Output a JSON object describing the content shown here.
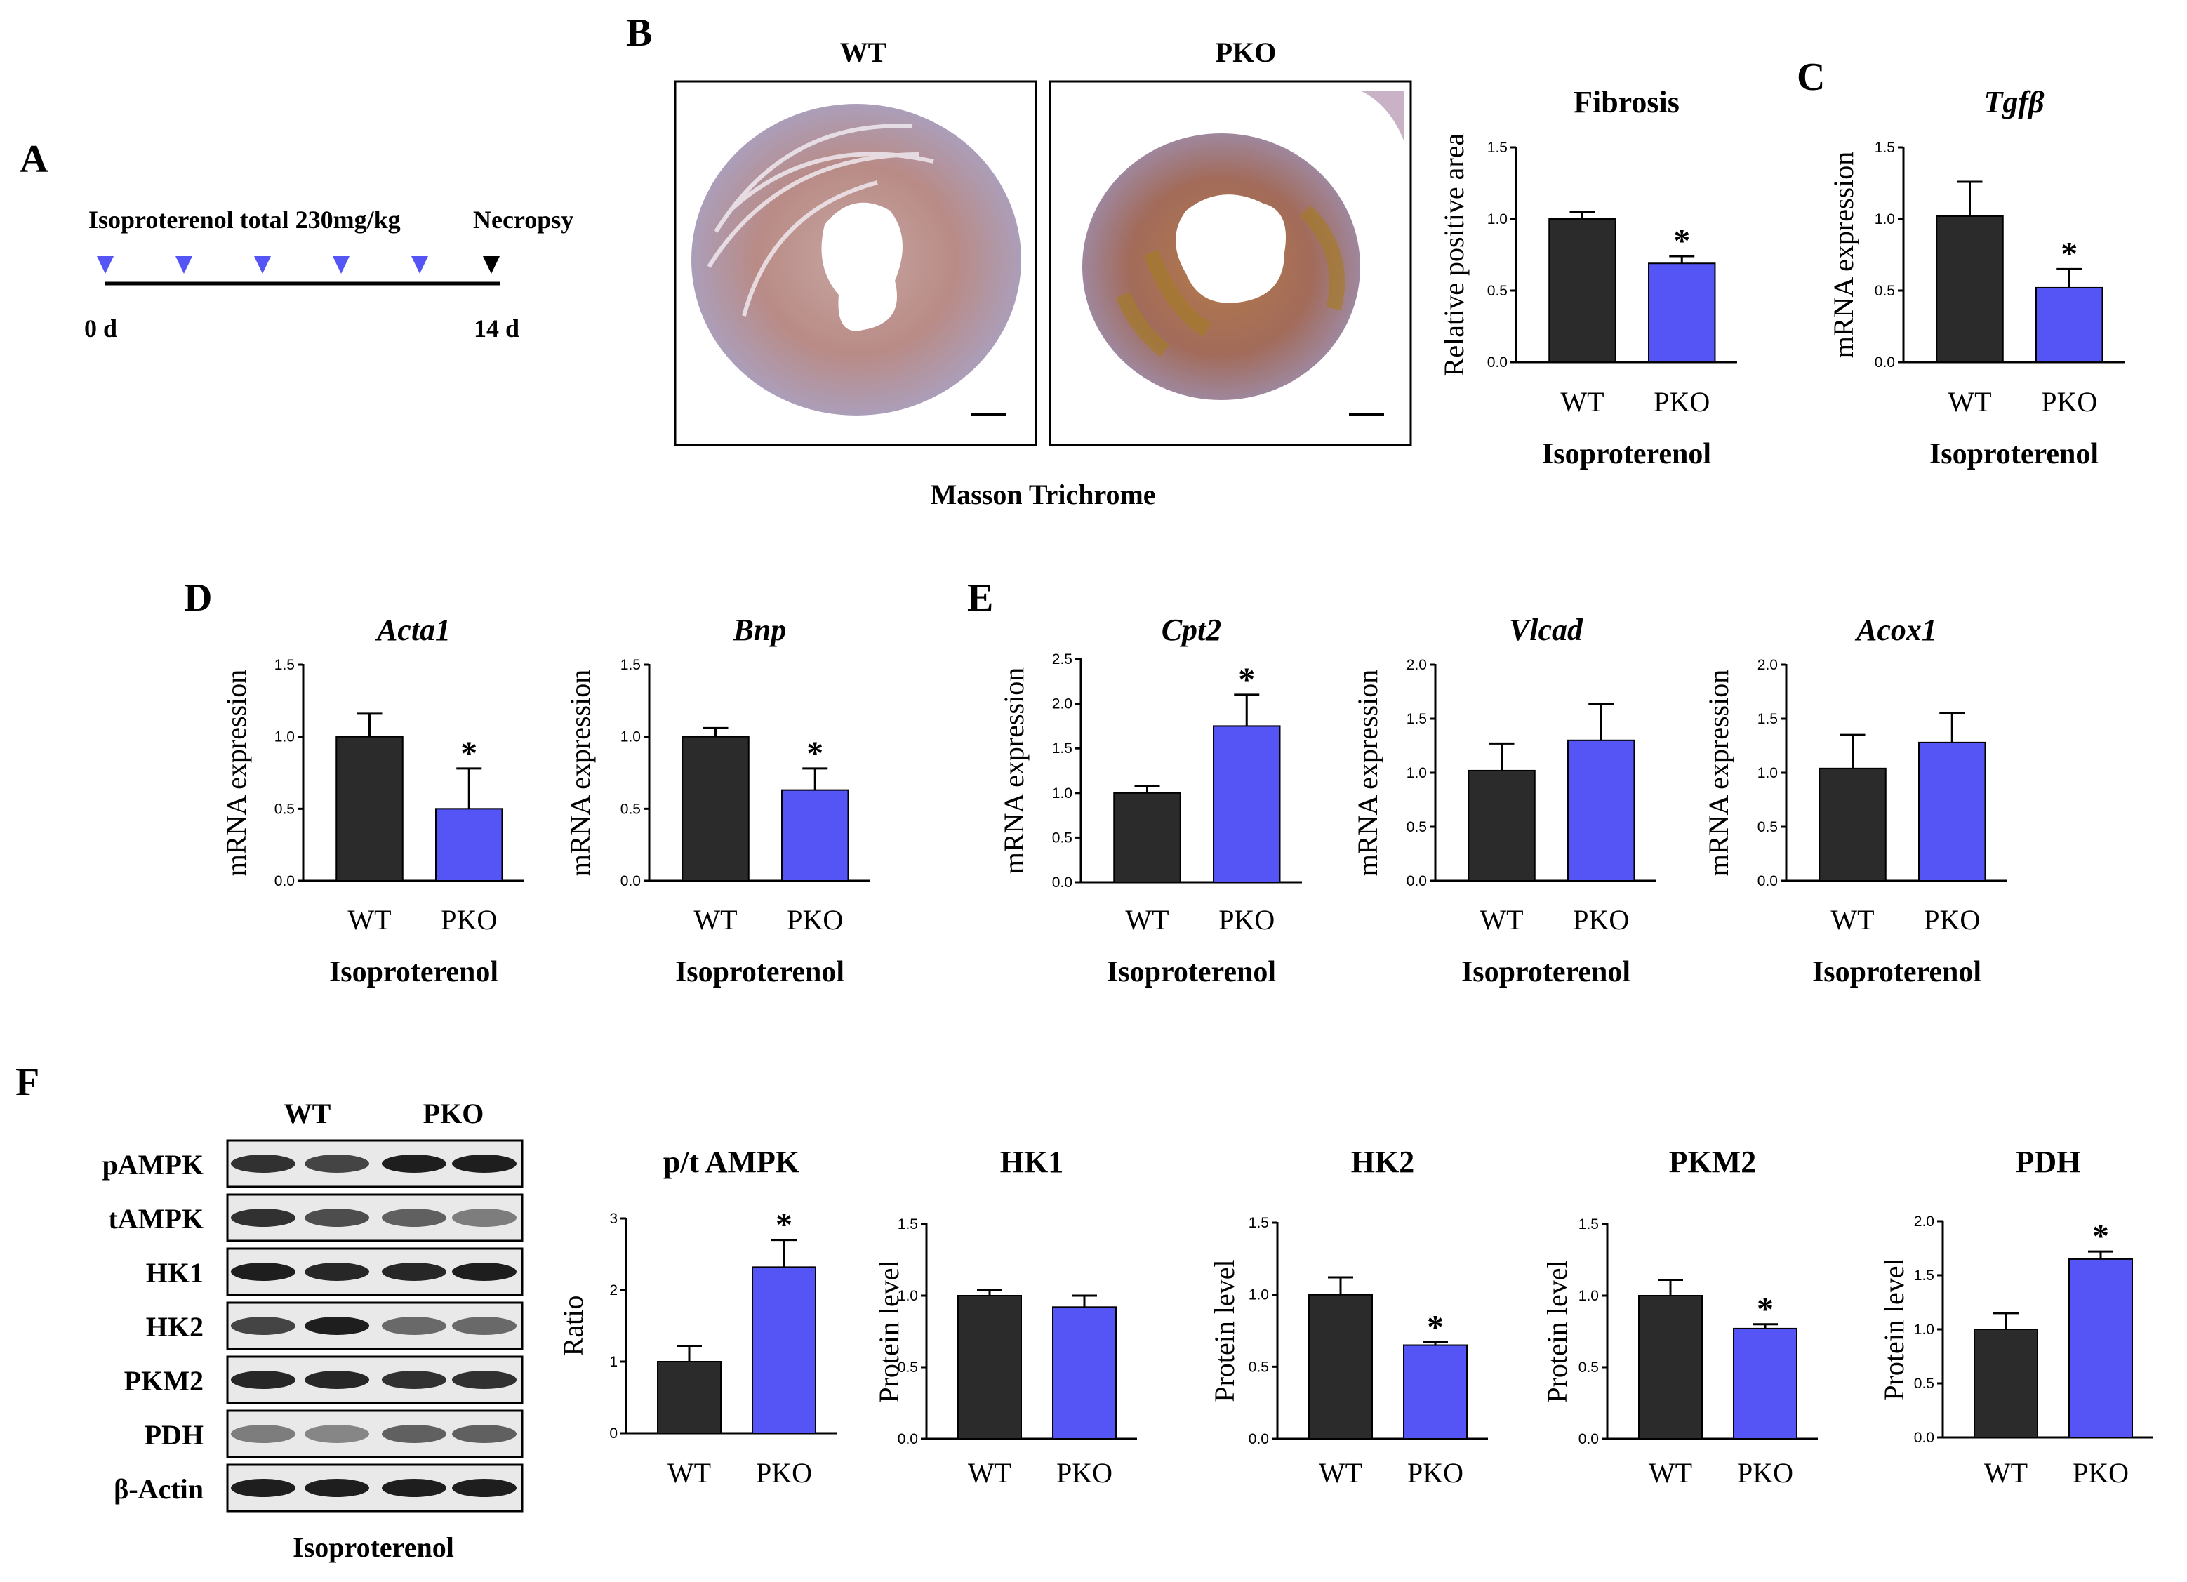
{
  "colors": {
    "wt": "#2b2b2b",
    "pko": "#5555f5",
    "axis": "#000000"
  },
  "panels": {
    "A": {
      "label": "A",
      "drug_text": "Isoproterenol total 230mg/kg",
      "end_text": "Necropsy",
      "start_day": "0 d",
      "end_day": "14 d",
      "injections": 5
    },
    "B": {
      "label": "B",
      "wt_title": "WT",
      "pko_title": "PKO",
      "stain_caption": "Masson Trichrome"
    },
    "C": {
      "label": "C"
    },
    "D": {
      "label": "D"
    },
    "E": {
      "label": "E"
    },
    "F": {
      "label": "F",
      "lane_groups": [
        "WT",
        "PKO"
      ],
      "blot_rows": [
        "pAMPK",
        "tAMPK",
        "HK1",
        "HK2",
        "PKM2",
        "PDH",
        "β-Actin"
      ],
      "caption": "Isoproterenol"
    }
  },
  "chart_data": [
    {
      "id": "fibrosis",
      "type": "bar",
      "title": "Fibrosis",
      "title_style": "bold",
      "ylabel": "Relative positive area",
      "xlabel": "Isoproterenol",
      "categories": [
        "WT",
        "PKO"
      ],
      "values": [
        1.0,
        0.69
      ],
      "errors": [
        0.05,
        0.05
      ],
      "significant": [
        false,
        true
      ],
      "star": "*",
      "ylim": [
        0,
        1.5
      ],
      "ticks": [
        "0.0",
        "0.5",
        "1.0",
        "1.5"
      ]
    },
    {
      "id": "tgfb",
      "type": "bar",
      "title": "Tgfβ",
      "title_style": "italic",
      "ylabel": "mRNA expression",
      "xlabel": "Isoproterenol",
      "categories": [
        "WT",
        "PKO"
      ],
      "values": [
        1.02,
        0.52
      ],
      "errors": [
        0.24,
        0.13
      ],
      "significant": [
        false,
        true
      ],
      "star": "*",
      "ylim": [
        0,
        1.5
      ],
      "ticks": [
        "0.0",
        "0.5",
        "1.0",
        "1.5"
      ]
    },
    {
      "id": "acta1",
      "type": "bar",
      "title": "Acta1",
      "title_style": "italic",
      "ylabel": "mRNA expression",
      "xlabel": "Isoproterenol",
      "categories": [
        "WT",
        "PKO"
      ],
      "values": [
        1.0,
        0.5
      ],
      "errors": [
        0.16,
        0.28
      ],
      "significant": [
        false,
        true
      ],
      "star": "*",
      "ylim": [
        0,
        1.5
      ],
      "ticks": [
        "0.0",
        "0.5",
        "1.0",
        "1.5"
      ]
    },
    {
      "id": "bnp",
      "type": "bar",
      "title": "Bnp",
      "title_style": "italic",
      "ylabel": "mRNA expression",
      "xlabel": "Isoproterenol",
      "categories": [
        "WT",
        "PKO"
      ],
      "values": [
        1.0,
        0.63
      ],
      "errors": [
        0.06,
        0.15
      ],
      "significant": [
        false,
        true
      ],
      "star": "*",
      "ylim": [
        0,
        1.5
      ],
      "ticks": [
        "0.0",
        "0.5",
        "1.0",
        "1.5"
      ]
    },
    {
      "id": "cpt2",
      "type": "bar",
      "title": "Cpt2",
      "title_style": "italic",
      "ylabel": "mRNA expression",
      "xlabel": "Isoproterenol",
      "categories": [
        "WT",
        "PKO"
      ],
      "values": [
        1.0,
        1.75
      ],
      "errors": [
        0.08,
        0.35
      ],
      "significant": [
        false,
        true
      ],
      "star": "*",
      "ylim": [
        0,
        2.5
      ],
      "ticks": [
        "0.0",
        "0.5",
        "1.0",
        "1.5",
        "2.0",
        "2.5"
      ]
    },
    {
      "id": "vlcad",
      "type": "bar",
      "title": "Vlcad",
      "title_style": "italic",
      "ylabel": "mRNA expression",
      "xlabel": "Isoproterenol",
      "categories": [
        "WT",
        "PKO"
      ],
      "values": [
        1.02,
        1.3
      ],
      "errors": [
        0.25,
        0.34
      ],
      "significant": [
        false,
        false
      ],
      "star": "*",
      "ylim": [
        0,
        2.0
      ],
      "ticks": [
        "0.0",
        "0.5",
        "1.0",
        "1.5",
        "2.0"
      ]
    },
    {
      "id": "acox1",
      "type": "bar",
      "title": "Acox1",
      "title_style": "italic",
      "ylabel": "mRNA expression",
      "xlabel": "Isoproterenol",
      "categories": [
        "WT",
        "PKO"
      ],
      "values": [
        1.04,
        1.28
      ],
      "errors": [
        0.31,
        0.27
      ],
      "significant": [
        false,
        false
      ],
      "star": "*",
      "ylim": [
        0,
        2.0
      ],
      "ticks": [
        "0.0",
        "0.5",
        "1.0",
        "1.5",
        "2.0"
      ]
    },
    {
      "id": "ptampk",
      "type": "bar",
      "title": "p/t AMPK",
      "title_style": "bold",
      "ylabel": "Ratio",
      "xlabel": "",
      "categories": [
        "WT",
        "PKO"
      ],
      "values": [
        1.0,
        2.32
      ],
      "errors": [
        0.22,
        0.38
      ],
      "significant": [
        false,
        true
      ],
      "star": "*",
      "ylim": [
        0,
        3
      ],
      "ticks": [
        "0",
        "1",
        "2",
        "3"
      ]
    },
    {
      "id": "hk1",
      "type": "bar",
      "title": "HK1",
      "title_style": "bold",
      "ylabel": "Protein level",
      "xlabel": "",
      "categories": [
        "WT",
        "PKO"
      ],
      "values": [
        1.0,
        0.92
      ],
      "errors": [
        0.04,
        0.08
      ],
      "significant": [
        false,
        false
      ],
      "star": "*",
      "ylim": [
        0,
        1.5
      ],
      "ticks": [
        "0.0",
        "0.5",
        "1.0",
        "1.5"
      ]
    },
    {
      "id": "hk2",
      "type": "bar",
      "title": "HK2",
      "title_style": "bold",
      "ylabel": "Protein level",
      "xlabel": "",
      "categories": [
        "WT",
        "PKO"
      ],
      "values": [
        1.0,
        0.65
      ],
      "errors": [
        0.12,
        0.02
      ],
      "significant": [
        false,
        true
      ],
      "star": "*",
      "ylim": [
        0,
        1.5
      ],
      "ticks": [
        "0.0",
        "0.5",
        "1.0",
        "1.5"
      ]
    },
    {
      "id": "pkm2",
      "type": "bar",
      "title": "PKM2",
      "title_style": "bold",
      "ylabel": "Protein level",
      "xlabel": "",
      "categories": [
        "WT",
        "PKO"
      ],
      "values": [
        1.0,
        0.77
      ],
      "errors": [
        0.11,
        0.03
      ],
      "significant": [
        false,
        true
      ],
      "star": "*",
      "ylim": [
        0,
        1.5
      ],
      "ticks": [
        "0.0",
        "0.5",
        "1.0",
        "1.5"
      ]
    },
    {
      "id": "pdh",
      "type": "bar",
      "title": "PDH",
      "title_style": "bold",
      "ylabel": "Protein level",
      "xlabel": "",
      "categories": [
        "WT",
        "PKO"
      ],
      "values": [
        1.0,
        1.65
      ],
      "errors": [
        0.15,
        0.07
      ],
      "significant": [
        false,
        true
      ],
      "star": "*",
      "ylim": [
        0,
        2.0
      ],
      "ticks": [
        "0.0",
        "0.5",
        "1.0",
        "1.5",
        "2.0"
      ]
    }
  ]
}
